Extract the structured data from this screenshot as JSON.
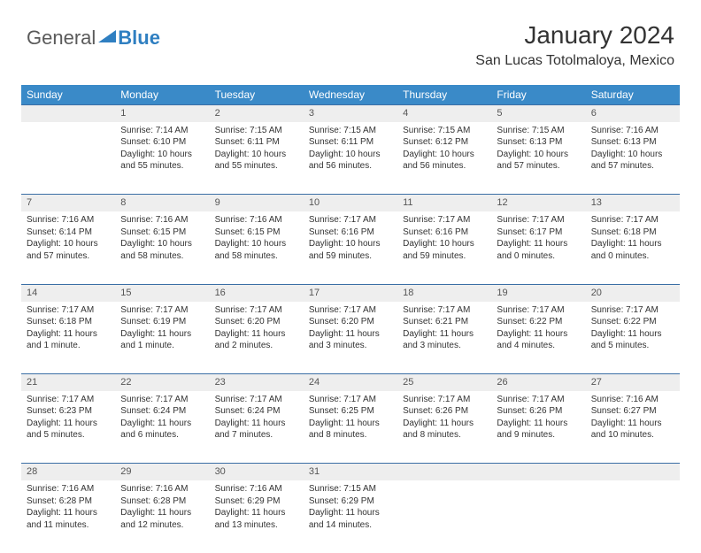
{
  "logo": {
    "word1": "General",
    "word2": "Blue"
  },
  "header": {
    "title": "January 2024",
    "location": "San Lucas Totolmaloya, Mexico"
  },
  "colors": {
    "header_bg": "#3a8ac8",
    "header_text": "#ffffff",
    "daynum_bg": "#eeeeee",
    "row_divider": "#3a6ea5",
    "logo_accent": "#2f7fc1",
    "text": "#333333"
  },
  "weekdays": [
    "Sunday",
    "Monday",
    "Tuesday",
    "Wednesday",
    "Thursday",
    "Friday",
    "Saturday"
  ],
  "weeks": [
    {
      "nums": [
        "",
        "1",
        "2",
        "3",
        "4",
        "5",
        "6"
      ],
      "cells": [
        null,
        {
          "sunrise": "Sunrise: 7:14 AM",
          "sunset": "Sunset: 6:10 PM",
          "day1": "Daylight: 10 hours",
          "day2": "and 55 minutes."
        },
        {
          "sunrise": "Sunrise: 7:15 AM",
          "sunset": "Sunset: 6:11 PM",
          "day1": "Daylight: 10 hours",
          "day2": "and 55 minutes."
        },
        {
          "sunrise": "Sunrise: 7:15 AM",
          "sunset": "Sunset: 6:11 PM",
          "day1": "Daylight: 10 hours",
          "day2": "and 56 minutes."
        },
        {
          "sunrise": "Sunrise: 7:15 AM",
          "sunset": "Sunset: 6:12 PM",
          "day1": "Daylight: 10 hours",
          "day2": "and 56 minutes."
        },
        {
          "sunrise": "Sunrise: 7:15 AM",
          "sunset": "Sunset: 6:13 PM",
          "day1": "Daylight: 10 hours",
          "day2": "and 57 minutes."
        },
        {
          "sunrise": "Sunrise: 7:16 AM",
          "sunset": "Sunset: 6:13 PM",
          "day1": "Daylight: 10 hours",
          "day2": "and 57 minutes."
        }
      ]
    },
    {
      "nums": [
        "7",
        "8",
        "9",
        "10",
        "11",
        "12",
        "13"
      ],
      "cells": [
        {
          "sunrise": "Sunrise: 7:16 AM",
          "sunset": "Sunset: 6:14 PM",
          "day1": "Daylight: 10 hours",
          "day2": "and 57 minutes."
        },
        {
          "sunrise": "Sunrise: 7:16 AM",
          "sunset": "Sunset: 6:15 PM",
          "day1": "Daylight: 10 hours",
          "day2": "and 58 minutes."
        },
        {
          "sunrise": "Sunrise: 7:16 AM",
          "sunset": "Sunset: 6:15 PM",
          "day1": "Daylight: 10 hours",
          "day2": "and 58 minutes."
        },
        {
          "sunrise": "Sunrise: 7:17 AM",
          "sunset": "Sunset: 6:16 PM",
          "day1": "Daylight: 10 hours",
          "day2": "and 59 minutes."
        },
        {
          "sunrise": "Sunrise: 7:17 AM",
          "sunset": "Sunset: 6:16 PM",
          "day1": "Daylight: 10 hours",
          "day2": "and 59 minutes."
        },
        {
          "sunrise": "Sunrise: 7:17 AM",
          "sunset": "Sunset: 6:17 PM",
          "day1": "Daylight: 11 hours",
          "day2": "and 0 minutes."
        },
        {
          "sunrise": "Sunrise: 7:17 AM",
          "sunset": "Sunset: 6:18 PM",
          "day1": "Daylight: 11 hours",
          "day2": "and 0 minutes."
        }
      ]
    },
    {
      "nums": [
        "14",
        "15",
        "16",
        "17",
        "18",
        "19",
        "20"
      ],
      "cells": [
        {
          "sunrise": "Sunrise: 7:17 AM",
          "sunset": "Sunset: 6:18 PM",
          "day1": "Daylight: 11 hours",
          "day2": "and 1 minute."
        },
        {
          "sunrise": "Sunrise: 7:17 AM",
          "sunset": "Sunset: 6:19 PM",
          "day1": "Daylight: 11 hours",
          "day2": "and 1 minute."
        },
        {
          "sunrise": "Sunrise: 7:17 AM",
          "sunset": "Sunset: 6:20 PM",
          "day1": "Daylight: 11 hours",
          "day2": "and 2 minutes."
        },
        {
          "sunrise": "Sunrise: 7:17 AM",
          "sunset": "Sunset: 6:20 PM",
          "day1": "Daylight: 11 hours",
          "day2": "and 3 minutes."
        },
        {
          "sunrise": "Sunrise: 7:17 AM",
          "sunset": "Sunset: 6:21 PM",
          "day1": "Daylight: 11 hours",
          "day2": "and 3 minutes."
        },
        {
          "sunrise": "Sunrise: 7:17 AM",
          "sunset": "Sunset: 6:22 PM",
          "day1": "Daylight: 11 hours",
          "day2": "and 4 minutes."
        },
        {
          "sunrise": "Sunrise: 7:17 AM",
          "sunset": "Sunset: 6:22 PM",
          "day1": "Daylight: 11 hours",
          "day2": "and 5 minutes."
        }
      ]
    },
    {
      "nums": [
        "21",
        "22",
        "23",
        "24",
        "25",
        "26",
        "27"
      ],
      "cells": [
        {
          "sunrise": "Sunrise: 7:17 AM",
          "sunset": "Sunset: 6:23 PM",
          "day1": "Daylight: 11 hours",
          "day2": "and 5 minutes."
        },
        {
          "sunrise": "Sunrise: 7:17 AM",
          "sunset": "Sunset: 6:24 PM",
          "day1": "Daylight: 11 hours",
          "day2": "and 6 minutes."
        },
        {
          "sunrise": "Sunrise: 7:17 AM",
          "sunset": "Sunset: 6:24 PM",
          "day1": "Daylight: 11 hours",
          "day2": "and 7 minutes."
        },
        {
          "sunrise": "Sunrise: 7:17 AM",
          "sunset": "Sunset: 6:25 PM",
          "day1": "Daylight: 11 hours",
          "day2": "and 8 minutes."
        },
        {
          "sunrise": "Sunrise: 7:17 AM",
          "sunset": "Sunset: 6:26 PM",
          "day1": "Daylight: 11 hours",
          "day2": "and 8 minutes."
        },
        {
          "sunrise": "Sunrise: 7:17 AM",
          "sunset": "Sunset: 6:26 PM",
          "day1": "Daylight: 11 hours",
          "day2": "and 9 minutes."
        },
        {
          "sunrise": "Sunrise: 7:16 AM",
          "sunset": "Sunset: 6:27 PM",
          "day1": "Daylight: 11 hours",
          "day2": "and 10 minutes."
        }
      ]
    },
    {
      "nums": [
        "28",
        "29",
        "30",
        "31",
        "",
        "",
        ""
      ],
      "cells": [
        {
          "sunrise": "Sunrise: 7:16 AM",
          "sunset": "Sunset: 6:28 PM",
          "day1": "Daylight: 11 hours",
          "day2": "and 11 minutes."
        },
        {
          "sunrise": "Sunrise: 7:16 AM",
          "sunset": "Sunset: 6:28 PM",
          "day1": "Daylight: 11 hours",
          "day2": "and 12 minutes."
        },
        {
          "sunrise": "Sunrise: 7:16 AM",
          "sunset": "Sunset: 6:29 PM",
          "day1": "Daylight: 11 hours",
          "day2": "and 13 minutes."
        },
        {
          "sunrise": "Sunrise: 7:15 AM",
          "sunset": "Sunset: 6:29 PM",
          "day1": "Daylight: 11 hours",
          "day2": "and 14 minutes."
        },
        null,
        null,
        null
      ]
    }
  ]
}
